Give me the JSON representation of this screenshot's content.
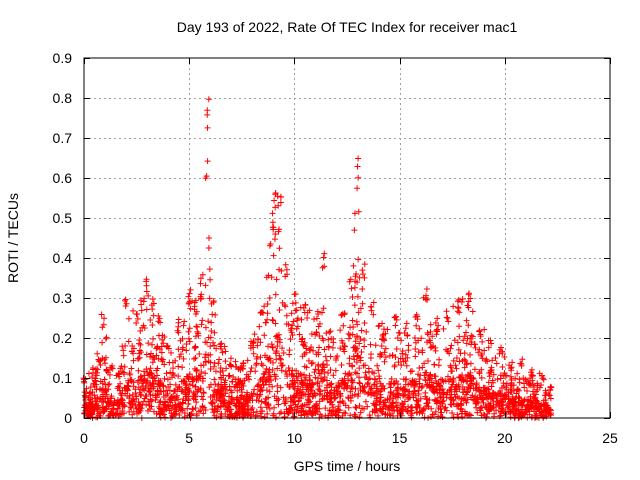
{
  "chart_data": {
    "type": "scatter",
    "title": "Day 193 of 2022, Rate Of TEC Index for receiver mac1",
    "xlabel": "GPS time / hours",
    "ylabel": "ROTI / TECUs",
    "xlim": [
      0,
      25
    ],
    "ylim": [
      0,
      0.9
    ],
    "x_ticks": [
      "0",
      "5",
      "10",
      "15",
      "20",
      "25"
    ],
    "y_ticks": [
      "0",
      "0.1",
      "0.2",
      "0.3",
      "0.4",
      "0.5",
      "0.6",
      "0.7",
      "0.8",
      "0.9"
    ],
    "grid": true,
    "marker": "+",
    "color": "#ff0000",
    "data_x_range": [
      0,
      22.2
    ],
    "envelope": [
      [
        0.0,
        0.1
      ],
      [
        0.5,
        0.13
      ],
      [
        0.9,
        0.26
      ],
      [
        1.3,
        0.14
      ],
      [
        1.7,
        0.12
      ],
      [
        2.0,
        0.3
      ],
      [
        2.5,
        0.27
      ],
      [
        3.0,
        0.37
      ],
      [
        3.3,
        0.3
      ],
      [
        3.6,
        0.28
      ],
      [
        4.0,
        0.2
      ],
      [
        4.5,
        0.25
      ],
      [
        5.0,
        0.33
      ],
      [
        5.3,
        0.3
      ],
      [
        5.6,
        0.35
      ],
      [
        5.9,
        0.84
      ],
      [
        6.1,
        0.3
      ],
      [
        6.5,
        0.2
      ],
      [
        7.0,
        0.15
      ],
      [
        7.5,
        0.13
      ],
      [
        8.0,
        0.2
      ],
      [
        8.5,
        0.3
      ],
      [
        9.0,
        0.56
      ],
      [
        9.3,
        0.61
      ],
      [
        9.6,
        0.39
      ],
      [
        10.0,
        0.33
      ],
      [
        10.5,
        0.3
      ],
      [
        11.0,
        0.25
      ],
      [
        11.4,
        0.42
      ],
      [
        11.8,
        0.2
      ],
      [
        12.3,
        0.27
      ],
      [
        12.7,
        0.35
      ],
      [
        13.0,
        0.65
      ],
      [
        13.3,
        0.4
      ],
      [
        13.7,
        0.3
      ],
      [
        14.3,
        0.22
      ],
      [
        14.8,
        0.27
      ],
      [
        15.3,
        0.24
      ],
      [
        15.8,
        0.28
      ],
      [
        16.3,
        0.34
      ],
      [
        16.8,
        0.25
      ],
      [
        17.3,
        0.28
      ],
      [
        17.8,
        0.3
      ],
      [
        18.3,
        0.32
      ],
      [
        18.8,
        0.24
      ],
      [
        19.3,
        0.2
      ],
      [
        19.8,
        0.18
      ],
      [
        20.3,
        0.14
      ],
      [
        20.8,
        0.15
      ],
      [
        21.3,
        0.12
      ],
      [
        21.8,
        0.11
      ],
      [
        22.2,
        0.08
      ]
    ]
  }
}
